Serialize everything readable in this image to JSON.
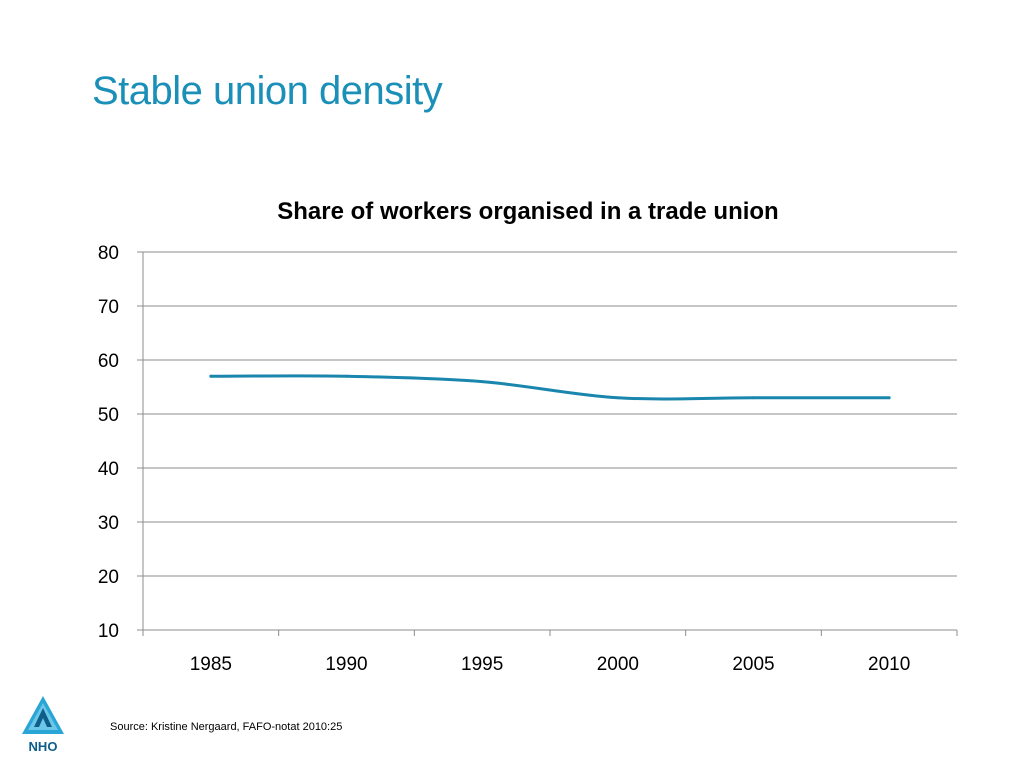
{
  "slide": {
    "title": "Stable union density",
    "source": "Source: Kristine Nergaard, FAFO-notat 2010:25",
    "logo_text": "NHO"
  },
  "colors": {
    "title": "#1a8fb8",
    "line": "#1a86ae",
    "grid": "#8c8c8c"
  },
  "icons": {
    "logo": "nho-logo-icon"
  },
  "chart_data": {
    "type": "line",
    "title": "Share of workers organised in a trade union",
    "xlabel": "",
    "ylabel": "",
    "x": [
      1985,
      1990,
      1995,
      2000,
      2005,
      2010
    ],
    "series": [
      {
        "values": [
          57,
          57,
          56,
          53,
          53,
          53
        ]
      }
    ],
    "ylim": [
      10,
      80
    ],
    "yticks": [
      10,
      20,
      30,
      40,
      50,
      60,
      70,
      80
    ],
    "xtick_labels": [
      "1985",
      "1990",
      "1995",
      "2000",
      "2005",
      "2010"
    ],
    "grid": true,
    "legend": "none"
  }
}
